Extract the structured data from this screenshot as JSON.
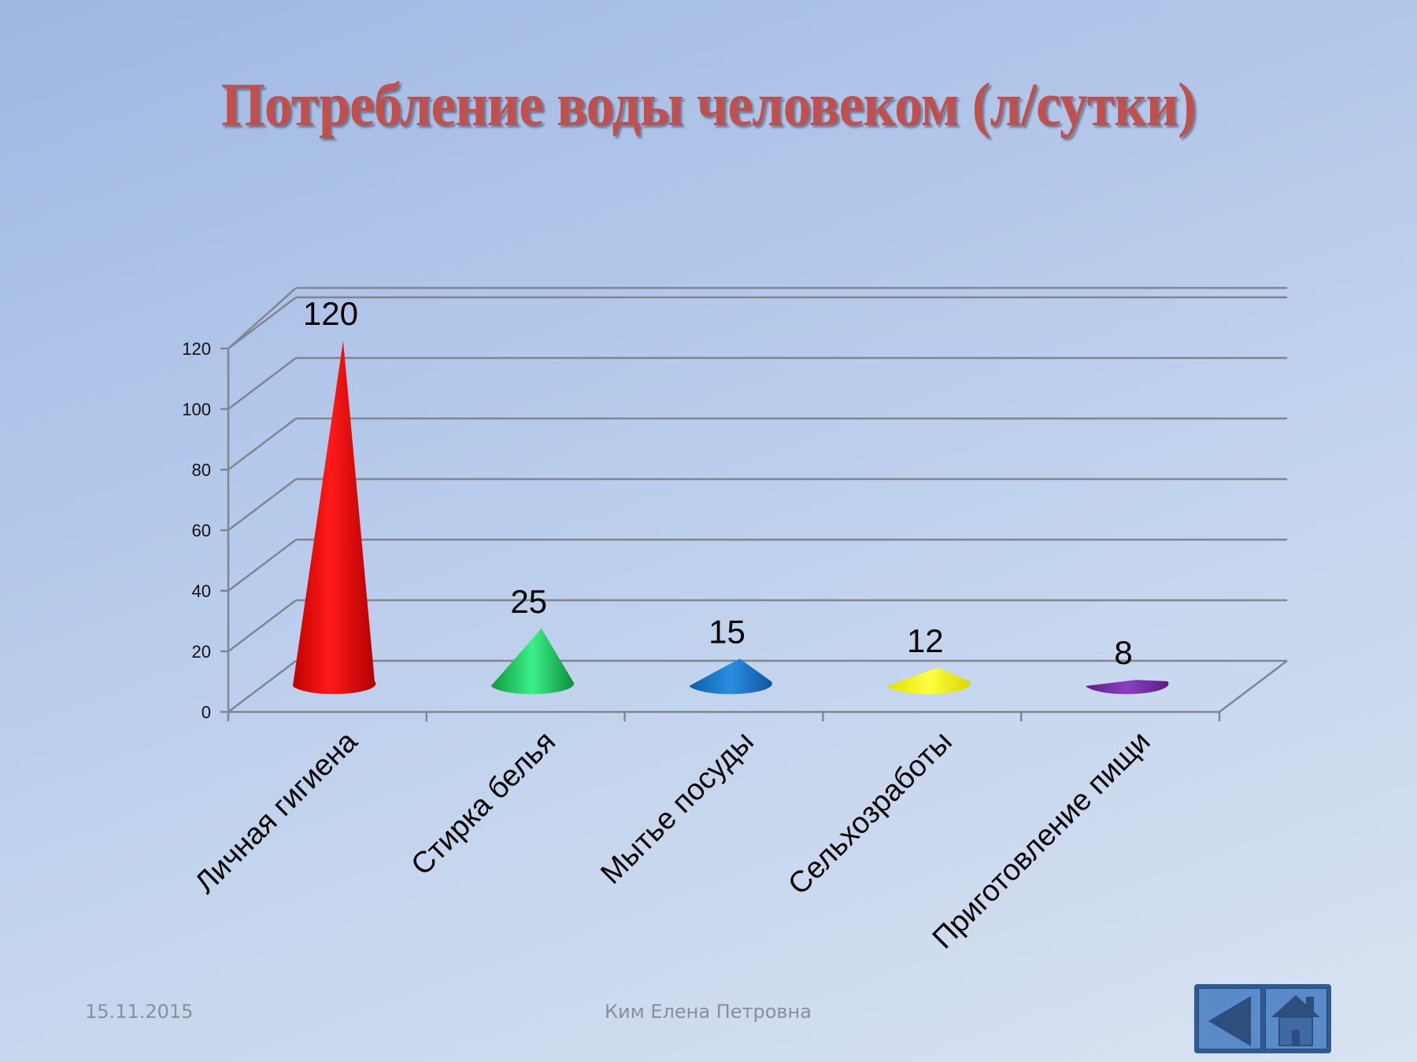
{
  "slide": {
    "title": "Потребление воды человеком (л/сутки)",
    "footer": {
      "date": "15.11.2015",
      "author": "Ким Елена Петровна"
    },
    "nav": {
      "back_icon": "triangle-left",
      "home_icon": "house"
    }
  },
  "chart_data": {
    "type": "bar",
    "style": "3d-cone",
    "title": "Потребление воды человеком (л/сутки)",
    "categories": [
      "Личная гигиена",
      "Стирка белья",
      "Мытье посуды",
      "Сельхозработы",
      "Приготовление пищи"
    ],
    "values": [
      120,
      25,
      15,
      12,
      8
    ],
    "data_labels": [
      "120",
      "25",
      "15",
      "12",
      "8"
    ],
    "colors": [
      "#ff0000",
      "#1fbf5a",
      "#1a78c8",
      "#ffff00",
      "#7030a0"
    ],
    "xlabel": "",
    "ylabel": "",
    "yticks": [
      "0",
      "20",
      "40",
      "60",
      "80",
      "100",
      "120"
    ],
    "ylim": [
      0,
      140
    ],
    "grid": true,
    "legend": "none"
  }
}
